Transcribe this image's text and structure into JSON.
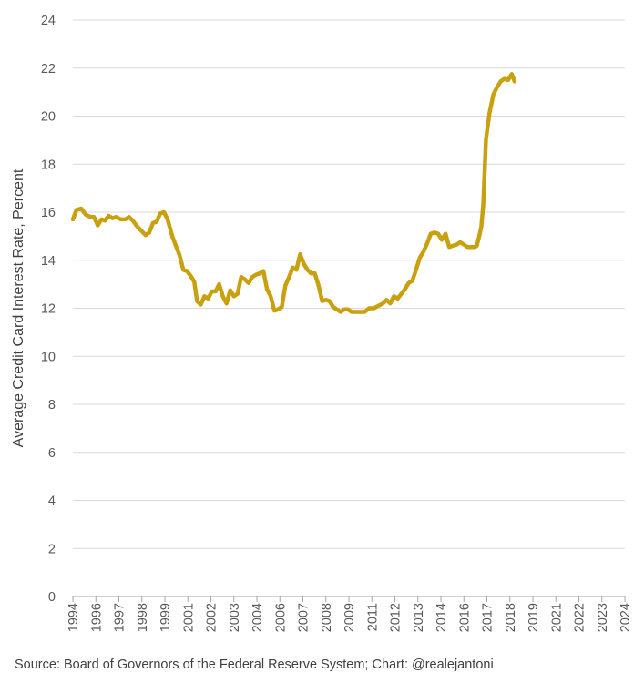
{
  "chart_data": {
    "type": "line",
    "title": "",
    "xlabel": "",
    "ylabel": "Average Credit Card Interest Rate, Percent",
    "ylim": [
      0,
      24
    ],
    "yticks": [
      0,
      2,
      4,
      6,
      8,
      10,
      12,
      14,
      16,
      18,
      20,
      22,
      24
    ],
    "xlim": [
      1994,
      2024
    ],
    "xtick_labels": [
      "1994",
      "1996",
      "1997",
      "1998",
      "1999",
      "2001",
      "2002",
      "2003",
      "2004",
      "2006",
      "2007",
      "2008",
      "2009",
      "2011",
      "2012",
      "2013",
      "2014",
      "2016",
      "2017",
      "2018",
      "2019",
      "2021",
      "2022",
      "2023",
      "2024"
    ],
    "grid": "horizontal",
    "legend": "none",
    "series": [
      {
        "color": "#C9A010",
        "points": [
          [
            1994.0,
            15.7
          ],
          [
            1994.2,
            16.1
          ],
          [
            1994.45,
            16.15
          ],
          [
            1994.7,
            15.9
          ],
          [
            1994.95,
            15.8
          ],
          [
            1995.15,
            15.8
          ],
          [
            1995.35,
            15.45
          ],
          [
            1995.55,
            15.7
          ],
          [
            1995.75,
            15.65
          ],
          [
            1995.95,
            15.85
          ],
          [
            1996.15,
            15.75
          ],
          [
            1996.35,
            15.8
          ],
          [
            1996.6,
            15.7
          ],
          [
            1996.85,
            15.7
          ],
          [
            1997.05,
            15.8
          ],
          [
            1997.25,
            15.65
          ],
          [
            1997.5,
            15.4
          ],
          [
            1997.75,
            15.2
          ],
          [
            1997.95,
            15.05
          ],
          [
            1998.15,
            15.15
          ],
          [
            1998.35,
            15.55
          ],
          [
            1998.55,
            15.6
          ],
          [
            1998.75,
            15.95
          ],
          [
            1998.95,
            16.0
          ],
          [
            1999.15,
            15.7
          ],
          [
            1999.4,
            15.0
          ],
          [
            1999.6,
            14.6
          ],
          [
            1999.8,
            14.2
          ],
          [
            2000.0,
            13.6
          ],
          [
            2000.2,
            13.55
          ],
          [
            2000.4,
            13.35
          ],
          [
            2000.6,
            13.1
          ],
          [
            2000.75,
            12.3
          ],
          [
            2000.95,
            12.15
          ],
          [
            2001.15,
            12.5
          ],
          [
            2001.35,
            12.4
          ],
          [
            2001.55,
            12.7
          ],
          [
            2001.75,
            12.7
          ],
          [
            2001.95,
            13.0
          ],
          [
            2002.15,
            12.5
          ],
          [
            2002.35,
            12.2
          ],
          [
            2002.55,
            12.75
          ],
          [
            2002.75,
            12.5
          ],
          [
            2002.95,
            12.6
          ],
          [
            2003.15,
            13.3
          ],
          [
            2003.35,
            13.2
          ],
          [
            2003.55,
            13.05
          ],
          [
            2003.75,
            13.3
          ],
          [
            2003.95,
            13.4
          ],
          [
            2004.15,
            13.45
          ],
          [
            2004.35,
            13.55
          ],
          [
            2004.55,
            12.8
          ],
          [
            2004.75,
            12.5
          ],
          [
            2004.95,
            11.9
          ],
          [
            2005.15,
            11.95
          ],
          [
            2005.35,
            12.05
          ],
          [
            2005.55,
            12.95
          ],
          [
            2005.75,
            13.3
          ],
          [
            2005.95,
            13.7
          ],
          [
            2006.15,
            13.6
          ],
          [
            2006.35,
            14.25
          ],
          [
            2006.55,
            13.85
          ],
          [
            2006.75,
            13.6
          ],
          [
            2006.95,
            13.45
          ],
          [
            2007.15,
            13.45
          ],
          [
            2007.35,
            12.95
          ],
          [
            2007.55,
            12.3
          ],
          [
            2007.75,
            12.35
          ],
          [
            2007.95,
            12.3
          ],
          [
            2008.15,
            12.05
          ],
          [
            2008.35,
            11.95
          ],
          [
            2008.55,
            11.85
          ],
          [
            2008.75,
            11.95
          ],
          [
            2008.95,
            11.95
          ],
          [
            2009.15,
            11.85
          ],
          [
            2009.35,
            11.85
          ],
          [
            2009.6,
            11.85
          ],
          [
            2009.85,
            11.85
          ],
          [
            2010.1,
            12.0
          ],
          [
            2010.35,
            12.0
          ],
          [
            2010.6,
            12.1
          ],
          [
            2010.85,
            12.2
          ],
          [
            2011.05,
            12.35
          ],
          [
            2011.25,
            12.2
          ],
          [
            2011.45,
            12.5
          ],
          [
            2011.65,
            12.4
          ],
          [
            2011.85,
            12.6
          ],
          [
            2012.05,
            12.8
          ],
          [
            2012.25,
            13.05
          ],
          [
            2012.45,
            13.15
          ],
          [
            2012.65,
            13.6
          ],
          [
            2012.85,
            14.1
          ],
          [
            2013.05,
            14.35
          ],
          [
            2013.25,
            14.7
          ],
          [
            2013.45,
            15.1
          ],
          [
            2013.65,
            15.15
          ],
          [
            2013.85,
            15.1
          ],
          [
            2014.05,
            14.85
          ],
          [
            2014.25,
            15.1
          ],
          [
            2014.45,
            14.55
          ],
          [
            2014.65,
            14.6
          ],
          [
            2014.85,
            14.65
          ],
          [
            2015.05,
            14.75
          ],
          [
            2015.25,
            14.65
          ],
          [
            2015.45,
            14.55
          ],
          [
            2015.65,
            14.55
          ],
          [
            2015.85,
            14.55
          ],
          [
            2015.95,
            14.6
          ],
          [
            2016.1,
            15.05
          ],
          [
            2016.2,
            15.4
          ],
          [
            2016.3,
            16.3
          ],
          [
            2016.45,
            19.05
          ],
          [
            2016.65,
            20.15
          ],
          [
            2016.85,
            20.9
          ],
          [
            2017.05,
            21.2
          ],
          [
            2017.25,
            21.45
          ],
          [
            2017.45,
            21.55
          ],
          [
            2017.65,
            21.5
          ],
          [
            2017.85,
            21.75
          ],
          [
            2018.0,
            21.45
          ]
        ]
      }
    ]
  },
  "source_text": "Source: Board of Governors of the Federal Reserve System; Chart: @realejantoni"
}
